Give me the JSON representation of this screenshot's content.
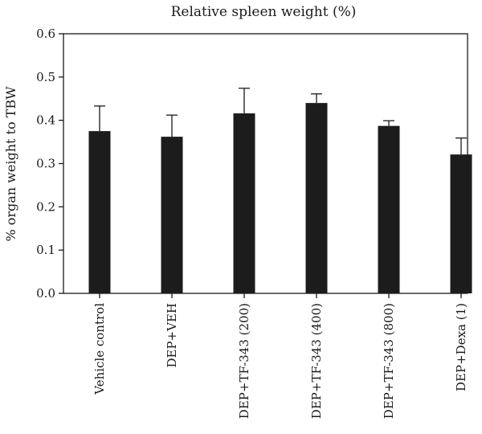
{
  "chart_data": {
    "type": "bar",
    "title": "Relative spleen weight (%)",
    "xlabel": "",
    "ylabel": "% organ weight to TBW",
    "ylim": [
      0,
      0.6
    ],
    "yticks": [
      "0.0",
      "0.1",
      "0.2",
      "0.3",
      "0.4",
      "0.5",
      "0.6"
    ],
    "grid": false,
    "bar_color": "#1c1c1c",
    "categories": [
      "Vehicle control",
      "DEP+VEH",
      "DEP+TF-343 (200)",
      "DEP+TF-343 (400)",
      "DEP+TF-343 (800)",
      "DEP+Dexa (1)"
    ],
    "values": [
      0.375,
      0.362,
      0.416,
      0.44,
      0.387,
      0.321
    ],
    "error_upper": [
      0.058,
      0.05,
      0.058,
      0.021,
      0.012,
      0.038
    ]
  }
}
